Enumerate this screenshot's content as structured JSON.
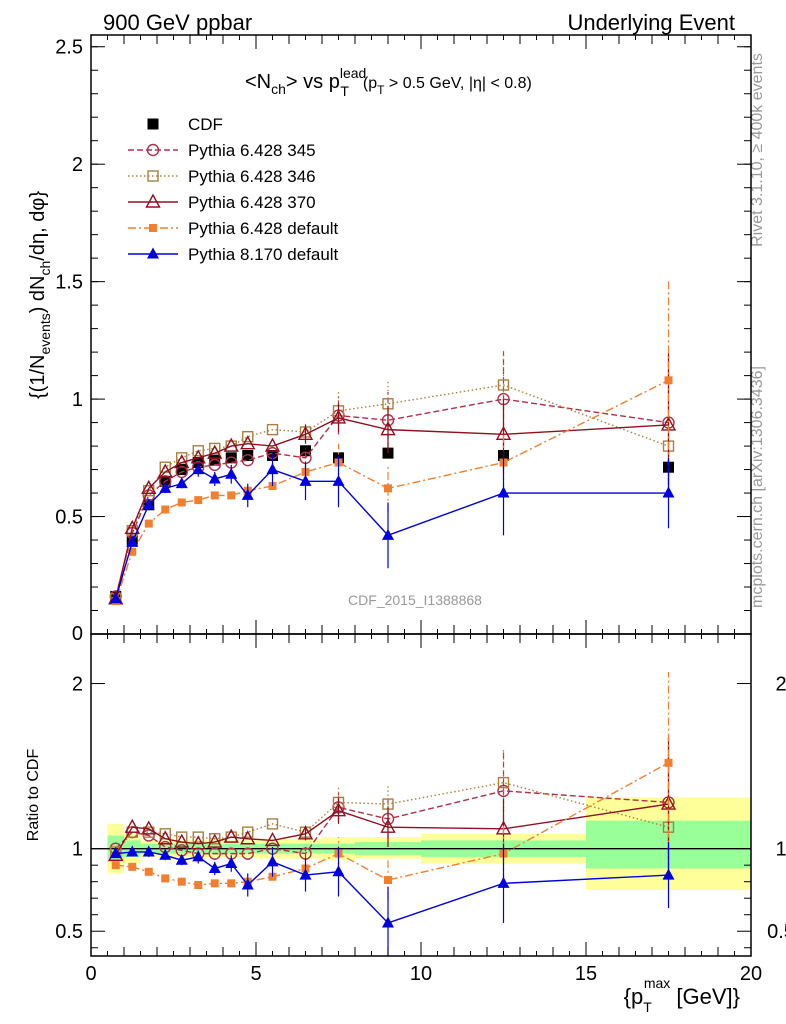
{
  "header": {
    "left": "900 GeV ppbar",
    "right": "Underlying Event"
  },
  "side_text": {
    "rivet": "Rivet 3.1.10, ≥ 400k events",
    "mcplots": "mcplots.cern.ch [arXiv:1306.3436]"
  },
  "chart_data": [
    {
      "type": "scatter",
      "title": "<N_ch> vs p_T^lead (p_T > 0.5 GeV, |η| < 0.8)",
      "title_parts": {
        "t1": "<N",
        "t1sub": "ch",
        "t2": "> vs p",
        "t2sup": "lead",
        "t2sub": "T",
        "t3": "(p",
        "t3sub": "T",
        "t4": " > 0.5 GeV, |η| < 0.8)"
      },
      "ylabel": "{(1/N_events) dN_ch/dη, dφ}",
      "ylabel_parts": {
        "a": "{(1/N",
        "asub": "events",
        "b": ") dN",
        "bsub": "ch",
        "c": "/dη, dφ}"
      },
      "watermark": "CDF_2015_I1388868",
      "xlim": [
        0,
        20
      ],
      "ylim": [
        0,
        2.55
      ],
      "yticks": [
        0.5,
        1,
        1.5,
        2,
        2.5
      ],
      "ytick_labels": [
        "0.5",
        "1",
        "1.5",
        "2",
        "2.5"
      ],
      "y0_label": "0",
      "x": [
        0.75,
        1.25,
        1.75,
        2.25,
        2.75,
        3.25,
        3.75,
        4.25,
        4.75,
        5.5,
        6.5,
        7.5,
        9,
        12.5,
        17.5
      ],
      "series": [
        {
          "name": "CDF",
          "color": "#000000",
          "marker": "filled-square",
          "line": "none",
          "values": [
            0.16,
            0.4,
            0.55,
            0.65,
            0.7,
            0.73,
            0.74,
            0.75,
            0.76,
            0.76,
            0.78,
            0.75,
            0.77,
            0.76,
            0.71
          ]
        },
        {
          "name": "Pythia 6.428 345",
          "color": "#b03048",
          "marker": "open-circle",
          "line": "dashed",
          "values": [
            0.16,
            0.43,
            0.59,
            0.65,
            0.69,
            0.71,
            0.72,
            0.73,
            0.74,
            0.77,
            0.75,
            0.93,
            0.91,
            1.0,
            0.9
          ],
          "errors": [
            0,
            0,
            0,
            0,
            0,
            0,
            0,
            0,
            0,
            0,
            0.04,
            0.08,
            0.12,
            0.2,
            0.3
          ]
        },
        {
          "name": "Pythia 6.428 346",
          "color": "#a88040",
          "marker": "open-square",
          "line": "dotted",
          "values": [
            0.15,
            0.44,
            0.61,
            0.71,
            0.75,
            0.78,
            0.79,
            0.8,
            0.84,
            0.87,
            0.86,
            0.95,
            0.98,
            1.06,
            0.8
          ],
          "errors": [
            0,
            0,
            0,
            0,
            0,
            0,
            0,
            0,
            0,
            0,
            0.04,
            0.08,
            0.1,
            0.15,
            0.25
          ]
        },
        {
          "name": "Pythia 6.428 370",
          "color": "#901020",
          "marker": "open-triangle",
          "line": "solid",
          "values": [
            0.15,
            0.45,
            0.62,
            0.69,
            0.73,
            0.75,
            0.77,
            0.8,
            0.81,
            0.8,
            0.85,
            0.92,
            0.87,
            0.85,
            0.89
          ],
          "errors": [
            0,
            0,
            0,
            0,
            0,
            0,
            0,
            0,
            0,
            0,
            0.04,
            0.06,
            0.1,
            0.15,
            0.3
          ]
        },
        {
          "name": "Pythia 6.428 default",
          "color": "#f08030",
          "marker": "filled-square-small",
          "line": "dashdot",
          "values": [
            0.14,
            0.35,
            0.47,
            0.53,
            0.56,
            0.57,
            0.59,
            0.59,
            0.61,
            0.63,
            0.69,
            0.73,
            0.62,
            0.73,
            1.08
          ],
          "errors": [
            0,
            0,
            0,
            0,
            0,
            0,
            0,
            0,
            0,
            0,
            0.03,
            0.08,
            0.1,
            0.12,
            0.43
          ]
        },
        {
          "name": "Pythia 8.170 default",
          "color": "#0000e0",
          "marker": "filled-triangle",
          "line": "solid",
          "values": [
            0.15,
            0.39,
            0.55,
            0.62,
            0.64,
            0.7,
            0.66,
            0.68,
            0.59,
            0.7,
            0.65,
            0.65,
            0.42,
            0.6,
            0.6
          ],
          "errors": [
            0,
            0,
            0.02,
            0.02,
            0.02,
            0.03,
            0.03,
            0.04,
            0.05,
            0.07,
            0.08,
            0.11,
            0.14,
            0.18,
            0.15
          ]
        }
      ],
      "legend_position": "top-left"
    },
    {
      "type": "scatter",
      "ylabel": "Ratio to CDF",
      "xlabel": "{p_T^max [GeV]}",
      "xlabel_parts": {
        "a": "{p",
        "asub": "T",
        "asup": "max",
        "b": " [GeV]}"
      },
      "xlim": [
        0,
        20
      ],
      "xticks": [
        0,
        5,
        10,
        15,
        20
      ],
      "xtick_labels": [
        "0",
        "5",
        "10",
        "15",
        "20"
      ],
      "ylim": [
        0.35,
        2.3
      ],
      "yticks": [
        0.5,
        1,
        2
      ],
      "ytick_labels": [
        "0.5",
        "1",
        "2"
      ],
      "bands": [
        {
          "x0": 0.5,
          "x1": 1.0,
          "y_low": 0.85,
          "y_high": 1.15,
          "g_low": 0.92,
          "g_high": 1.08
        },
        {
          "x0": 1.0,
          "x1": 1.5,
          "y_low": 0.91,
          "y_high": 1.09,
          "g_low": 0.95,
          "g_high": 1.05
        },
        {
          "x0": 1.5,
          "x1": 5.0,
          "y_low": 0.95,
          "y_high": 1.05,
          "g_low": 0.97,
          "g_high": 1.03
        },
        {
          "x0": 5.0,
          "x1": 7.0,
          "y_low": 0.94,
          "y_high": 1.06,
          "g_low": 0.97,
          "g_high": 1.03
        },
        {
          "x0": 7.0,
          "x1": 8.0,
          "y_low": 0.93,
          "y_high": 1.07,
          "g_low": 0.97,
          "g_high": 1.03
        },
        {
          "x0": 8.0,
          "x1": 10.0,
          "y_low": 0.94,
          "y_high": 1.07,
          "g_low": 0.96,
          "g_high": 1.04
        },
        {
          "x0": 10.0,
          "x1": 15.0,
          "y_low": 0.91,
          "y_high": 1.09,
          "g_low": 0.95,
          "g_high": 1.05
        },
        {
          "x0": 15.0,
          "x1": 20.0,
          "y_low": 0.75,
          "y_high": 1.31,
          "g_low": 0.88,
          "g_high": 1.17
        }
      ],
      "series": [
        {
          "name": "Pythia 6.428 345",
          "values": [
            1.0,
            1.1,
            1.08,
            1.01,
            0.99,
            0.97,
            0.97,
            0.97,
            0.97,
            1.0,
            0.97,
            1.25,
            1.18,
            1.35,
            1.28
          ],
          "errors": [
            0,
            0,
            0,
            0,
            0,
            0,
            0,
            0,
            0,
            0,
            0.04,
            0.09,
            0.12,
            0.24,
            0.4
          ]
        },
        {
          "name": "Pythia 6.428 346",
          "values": [
            0.98,
            1.1,
            1.1,
            1.09,
            1.07,
            1.07,
            1.06,
            1.07,
            1.1,
            1.15,
            1.1,
            1.28,
            1.27,
            1.4,
            1.13
          ],
          "errors": [
            0,
            0,
            0,
            0,
            0,
            0,
            0,
            0,
            0,
            0,
            0.04,
            0.09,
            0.12,
            0.2,
            0.35
          ]
        },
        {
          "name": "Pythia 6.428 370",
          "values": [
            0.96,
            1.13,
            1.12,
            1.06,
            1.04,
            1.03,
            1.04,
            1.07,
            1.06,
            1.05,
            1.09,
            1.23,
            1.13,
            1.12,
            1.27
          ],
          "errors": [
            0,
            0,
            0,
            0,
            0,
            0,
            0,
            0,
            0,
            0,
            0.04,
            0.08,
            0.12,
            0.18,
            0.4
          ]
        },
        {
          "name": "Pythia 6.428 default",
          "values": [
            0.9,
            0.89,
            0.86,
            0.82,
            0.8,
            0.78,
            0.79,
            0.79,
            0.8,
            0.83,
            0.88,
            0.97,
            0.81,
            0.97,
            1.52
          ],
          "errors": [
            0,
            0,
            0,
            0,
            0,
            0,
            0,
            0,
            0,
            0,
            0.04,
            0.1,
            0.12,
            0.17,
            0.55
          ]
        },
        {
          "name": "Pythia 8.170 default",
          "values": [
            0.97,
            0.98,
            0.98,
            0.96,
            0.93,
            0.95,
            0.88,
            0.91,
            0.78,
            0.92,
            0.84,
            0.86,
            0.55,
            0.79,
            0.84
          ],
          "errors": [
            0,
            0,
            0.03,
            0.03,
            0.03,
            0.04,
            0.04,
            0.05,
            0.07,
            0.09,
            0.1,
            0.15,
            0.22,
            0.24,
            0.2
          ]
        }
      ]
    }
  ]
}
